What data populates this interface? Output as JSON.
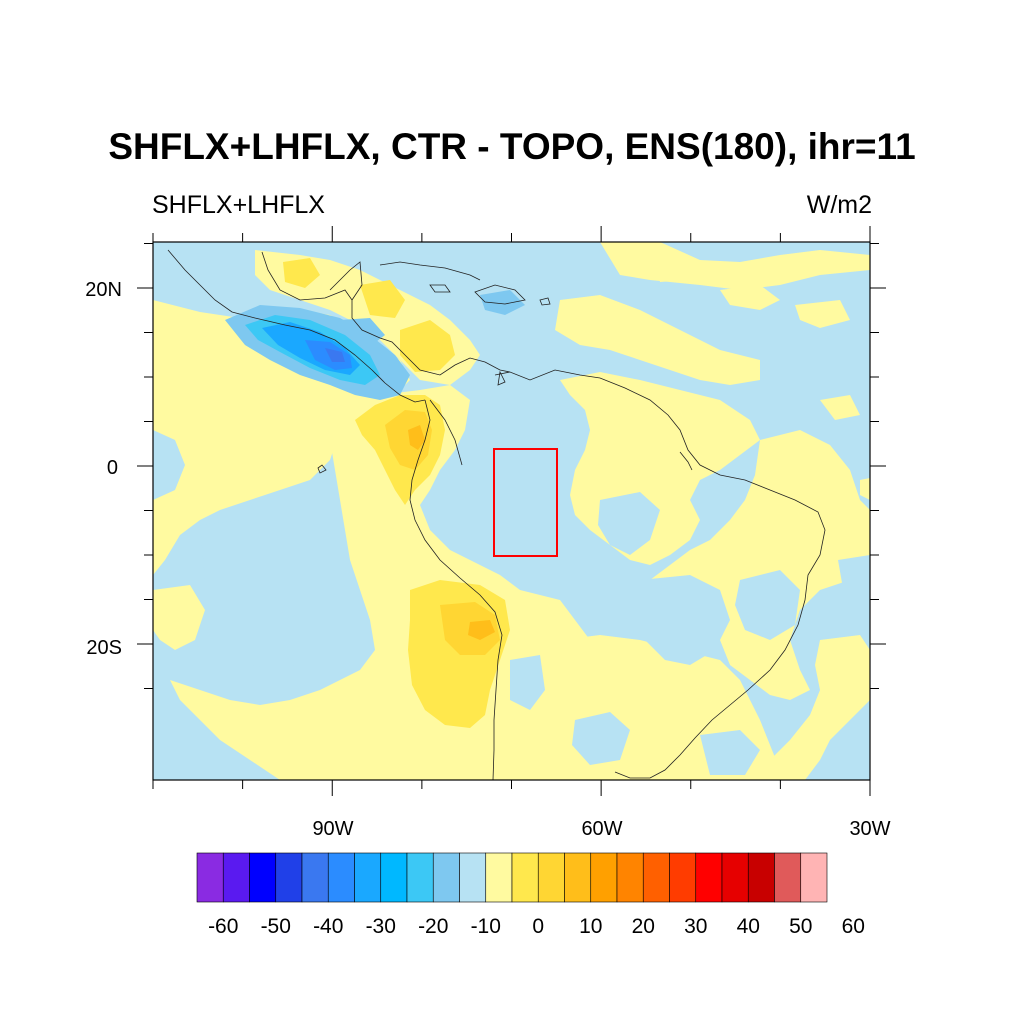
{
  "title": "SHFLX+LHFLX, CTR - TOPO, ENS(180), ihr=11",
  "subtitle_left": "SHFLX+LHFLX",
  "subtitle_right": "W/m2",
  "lat_labels": [
    "20N",
    "0",
    "20S"
  ],
  "lon_labels": [
    "90W",
    "60W",
    "30W"
  ],
  "colorbar": {
    "labels": [
      "-60",
      "-50",
      "-40",
      "-30",
      "-20",
      "-10",
      "0",
      "10",
      "20",
      "30",
      "40",
      "50",
      "60"
    ],
    "colors": [
      "#8a2be2",
      "#5a1af0",
      "#0000ff",
      "#2040e8",
      "#3a78f0",
      "#2b8cff",
      "#1aa8ff",
      "#00b8ff",
      "#3cc8f5",
      "#7ec8f0",
      "#b7e2f3",
      "#fffaa0",
      "#ffe84d",
      "#ffd633",
      "#ffbe1a",
      "#ffa000",
      "#ff8400",
      "#ff6000",
      "#ff3c00",
      "#ff0000",
      "#e60000",
      "#c80000",
      "#e05a5a",
      "#ffb4b4"
    ]
  },
  "colors": {
    "positive_weak": "#fffaa0",
    "negative_weak": "#b7e2f3",
    "box": "#ff0000"
  }
}
